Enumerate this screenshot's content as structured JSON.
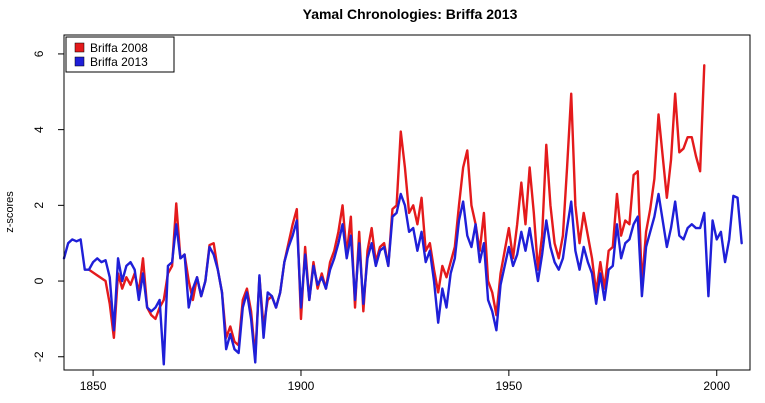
{
  "chart_data": {
    "type": "line",
    "title": "Yamal Chronologies: Briffa 2013",
    "xlabel": "",
    "ylabel": "z-scores",
    "xlim": [
      1843,
      2008
    ],
    "ylim": [
      -2.35,
      6.5
    ],
    "x_ticks": [
      1850,
      1900,
      1950,
      2000
    ],
    "y_ticks": [
      -2,
      0,
      2,
      4,
      6
    ],
    "legend_position": "top-left",
    "grid": false,
    "series": [
      {
        "name": "Briffa 2008",
        "color": "#e41a1c",
        "points": [
          [
            1849,
            0.3
          ],
          [
            1851,
            0.15
          ],
          [
            1853,
            0.0
          ],
          [
            1854,
            -0.6
          ],
          [
            1855,
            -1.5
          ],
          [
            1856,
            0.2
          ],
          [
            1857,
            -0.2
          ],
          [
            1858,
            0.1
          ],
          [
            1859,
            -0.1
          ],
          [
            1860,
            0.2
          ],
          [
            1861,
            -0.3
          ],
          [
            1862,
            0.6
          ],
          [
            1863,
            -0.7
          ],
          [
            1864,
            -0.9
          ],
          [
            1865,
            -1.0
          ],
          [
            1866,
            -0.7
          ],
          [
            1867,
            -0.5
          ],
          [
            1868,
            0.2
          ],
          [
            1869,
            0.4
          ],
          [
            1870,
            2.05
          ],
          [
            1871,
            0.6
          ],
          [
            1872,
            0.7
          ],
          [
            1873,
            0.0
          ],
          [
            1874,
            -0.5
          ],
          [
            1875,
            0.1
          ],
          [
            1876,
            -0.4
          ],
          [
            1877,
            0.0
          ],
          [
            1878,
            0.95
          ],
          [
            1879,
            1.0
          ],
          [
            1880,
            0.3
          ],
          [
            1881,
            -0.3
          ],
          [
            1882,
            -1.5
          ],
          [
            1883,
            -1.2
          ],
          [
            1884,
            -1.6
          ],
          [
            1885,
            -1.7
          ],
          [
            1886,
            -0.5
          ],
          [
            1887,
            -0.2
          ],
          [
            1888,
            -0.8
          ],
          [
            1889,
            -2.0
          ],
          [
            1890,
            0.1
          ],
          [
            1891,
            -1.2
          ],
          [
            1892,
            -0.5
          ],
          [
            1893,
            -0.4
          ],
          [
            1894,
            -0.7
          ],
          [
            1895,
            -0.3
          ],
          [
            1896,
            0.5
          ],
          [
            1897,
            1.0
          ],
          [
            1898,
            1.5
          ],
          [
            1899,
            1.9
          ],
          [
            1900,
            -1.0
          ],
          [
            1901,
            0.9
          ],
          [
            1902,
            -0.5
          ],
          [
            1903,
            0.5
          ],
          [
            1904,
            -0.2
          ],
          [
            1905,
            0.2
          ],
          [
            1906,
            -0.2
          ],
          [
            1907,
            0.5
          ],
          [
            1908,
            0.8
          ],
          [
            1909,
            1.3
          ],
          [
            1910,
            2.0
          ],
          [
            1911,
            0.7
          ],
          [
            1912,
            1.7
          ],
          [
            1913,
            -0.7
          ],
          [
            1914,
            1.3
          ],
          [
            1915,
            -0.8
          ],
          [
            1916,
            0.8
          ],
          [
            1917,
            1.4
          ],
          [
            1918,
            0.5
          ],
          [
            1919,
            0.9
          ],
          [
            1920,
            1.0
          ],
          [
            1921,
            0.4
          ],
          [
            1922,
            1.9
          ],
          [
            1923,
            2.0
          ],
          [
            1924,
            3.95
          ],
          [
            1925,
            3.0
          ],
          [
            1926,
            1.8
          ],
          [
            1927,
            2.0
          ],
          [
            1928,
            1.5
          ],
          [
            1929,
            2.2
          ],
          [
            1930,
            0.8
          ],
          [
            1931,
            1.0
          ],
          [
            1932,
            0.3
          ],
          [
            1933,
            -0.3
          ],
          [
            1934,
            0.4
          ],
          [
            1935,
            0.1
          ],
          [
            1936,
            0.5
          ],
          [
            1937,
            0.9
          ],
          [
            1938,
            2.0
          ],
          [
            1939,
            3.0
          ],
          [
            1940,
            3.45
          ],
          [
            1941,
            2.0
          ],
          [
            1942,
            1.5
          ],
          [
            1943,
            0.8
          ],
          [
            1944,
            1.8
          ],
          [
            1945,
            0.0
          ],
          [
            1946,
            -0.3
          ],
          [
            1947,
            -0.9
          ],
          [
            1948,
            0.2
          ],
          [
            1949,
            0.8
          ],
          [
            1950,
            1.4
          ],
          [
            1951,
            0.6
          ],
          [
            1952,
            1.5
          ],
          [
            1953,
            2.6
          ],
          [
            1954,
            1.5
          ],
          [
            1955,
            3.0
          ],
          [
            1956,
            1.8
          ],
          [
            1957,
            0.3
          ],
          [
            1958,
            1.2
          ],
          [
            1959,
            3.6
          ],
          [
            1960,
            2.0
          ],
          [
            1961,
            1.0
          ],
          [
            1962,
            0.6
          ],
          [
            1963,
            1.2
          ],
          [
            1964,
            3.0
          ],
          [
            1965,
            4.95
          ],
          [
            1966,
            2.0
          ],
          [
            1967,
            1.0
          ],
          [
            1968,
            1.8
          ],
          [
            1969,
            1.2
          ],
          [
            1970,
            0.6
          ],
          [
            1971,
            -0.3
          ],
          [
            1972,
            0.5
          ],
          [
            1973,
            -0.2
          ],
          [
            1974,
            0.8
          ],
          [
            1975,
            0.9
          ],
          [
            1976,
            2.3
          ],
          [
            1977,
            1.2
          ],
          [
            1978,
            1.6
          ],
          [
            1979,
            1.5
          ],
          [
            1980,
            2.8
          ],
          [
            1981,
            2.9
          ],
          [
            1982,
            -0.1
          ],
          [
            1983,
            1.3
          ],
          [
            1984,
            1.9
          ],
          [
            1985,
            2.7
          ],
          [
            1986,
            4.4
          ],
          [
            1987,
            3.3
          ],
          [
            1988,
            2.2
          ],
          [
            1989,
            3.2
          ],
          [
            1990,
            4.95
          ],
          [
            1991,
            3.4
          ],
          [
            1992,
            3.5
          ],
          [
            1993,
            3.8
          ],
          [
            1994,
            3.8
          ],
          [
            1995,
            3.3
          ],
          [
            1996,
            2.9
          ],
          [
            1997,
            5.7
          ]
        ]
      },
      {
        "name": "Briffa 2013",
        "color": "#1f1fd8",
        "points": [
          [
            1843,
            0.6
          ],
          [
            1844,
            1.0
          ],
          [
            1845,
            1.1
          ],
          [
            1846,
            1.05
          ],
          [
            1847,
            1.1
          ],
          [
            1848,
            0.3
          ],
          [
            1849,
            0.3
          ],
          [
            1850,
            0.5
          ],
          [
            1851,
            0.6
          ],
          [
            1852,
            0.5
          ],
          [
            1853,
            0.55
          ],
          [
            1854,
            0.1
          ],
          [
            1855,
            -1.3
          ],
          [
            1856,
            0.6
          ],
          [
            1857,
            0.0
          ],
          [
            1858,
            0.4
          ],
          [
            1859,
            0.5
          ],
          [
            1860,
            0.3
          ],
          [
            1861,
            -0.5
          ],
          [
            1862,
            0.2
          ],
          [
            1863,
            -0.7
          ],
          [
            1864,
            -0.8
          ],
          [
            1865,
            -0.7
          ],
          [
            1866,
            -0.5
          ],
          [
            1867,
            -2.2
          ],
          [
            1868,
            0.4
          ],
          [
            1869,
            0.5
          ],
          [
            1870,
            1.5
          ],
          [
            1871,
            0.6
          ],
          [
            1872,
            0.7
          ],
          [
            1873,
            -0.7
          ],
          [
            1874,
            -0.2
          ],
          [
            1875,
            0.1
          ],
          [
            1876,
            -0.4
          ],
          [
            1877,
            0.0
          ],
          [
            1878,
            0.9
          ],
          [
            1879,
            0.7
          ],
          [
            1880,
            0.3
          ],
          [
            1881,
            -0.3
          ],
          [
            1882,
            -1.8
          ],
          [
            1883,
            -1.4
          ],
          [
            1884,
            -1.8
          ],
          [
            1885,
            -1.9
          ],
          [
            1886,
            -0.7
          ],
          [
            1887,
            -0.3
          ],
          [
            1888,
            -1.0
          ],
          [
            1889,
            -2.15
          ],
          [
            1890,
            0.15
          ],
          [
            1891,
            -1.5
          ],
          [
            1892,
            -0.3
          ],
          [
            1893,
            -0.4
          ],
          [
            1894,
            -0.7
          ],
          [
            1895,
            -0.3
          ],
          [
            1896,
            0.5
          ],
          [
            1897,
            0.9
          ],
          [
            1898,
            1.2
          ],
          [
            1899,
            1.6
          ],
          [
            1900,
            -0.7
          ],
          [
            1901,
            0.7
          ],
          [
            1902,
            -0.5
          ],
          [
            1903,
            0.4
          ],
          [
            1904,
            -0.1
          ],
          [
            1905,
            0.1
          ],
          [
            1906,
            -0.2
          ],
          [
            1907,
            0.3
          ],
          [
            1908,
            0.6
          ],
          [
            1909,
            1.0
          ],
          [
            1910,
            1.5
          ],
          [
            1911,
            0.6
          ],
          [
            1912,
            1.2
          ],
          [
            1913,
            -0.5
          ],
          [
            1914,
            1.0
          ],
          [
            1915,
            -0.6
          ],
          [
            1916,
            0.6
          ],
          [
            1917,
            1.0
          ],
          [
            1918,
            0.4
          ],
          [
            1919,
            0.8
          ],
          [
            1920,
            0.9
          ],
          [
            1921,
            0.4
          ],
          [
            1922,
            1.7
          ],
          [
            1923,
            1.8
          ],
          [
            1924,
            2.3
          ],
          [
            1925,
            2.0
          ],
          [
            1926,
            1.3
          ],
          [
            1927,
            1.4
          ],
          [
            1928,
            0.8
          ],
          [
            1929,
            1.3
          ],
          [
            1930,
            0.5
          ],
          [
            1931,
            0.8
          ],
          [
            1932,
            0.0
          ],
          [
            1933,
            -1.1
          ],
          [
            1934,
            -0.2
          ],
          [
            1935,
            -0.7
          ],
          [
            1936,
            0.2
          ],
          [
            1937,
            0.6
          ],
          [
            1938,
            1.6
          ],
          [
            1939,
            2.1
          ],
          [
            1940,
            1.2
          ],
          [
            1941,
            0.9
          ],
          [
            1942,
            1.5
          ],
          [
            1943,
            0.5
          ],
          [
            1944,
            1.0
          ],
          [
            1945,
            -0.5
          ],
          [
            1946,
            -0.8
          ],
          [
            1947,
            -1.3
          ],
          [
            1948,
            -0.1
          ],
          [
            1949,
            0.4
          ],
          [
            1950,
            0.9
          ],
          [
            1951,
            0.4
          ],
          [
            1952,
            0.7
          ],
          [
            1953,
            1.3
          ],
          [
            1954,
            0.8
          ],
          [
            1955,
            1.4
          ],
          [
            1956,
            0.7
          ],
          [
            1957,
            0.0
          ],
          [
            1958,
            0.7
          ],
          [
            1959,
            1.6
          ],
          [
            1960,
            0.9
          ],
          [
            1961,
            0.5
          ],
          [
            1962,
            0.3
          ],
          [
            1963,
            0.6
          ],
          [
            1964,
            1.4
          ],
          [
            1965,
            2.1
          ],
          [
            1966,
            0.8
          ],
          [
            1967,
            0.3
          ],
          [
            1968,
            0.9
          ],
          [
            1969,
            0.5
          ],
          [
            1970,
            0.2
          ],
          [
            1971,
            -0.6
          ],
          [
            1972,
            0.2
          ],
          [
            1973,
            -0.5
          ],
          [
            1974,
            0.3
          ],
          [
            1975,
            0.4
          ],
          [
            1976,
            1.5
          ],
          [
            1977,
            0.6
          ],
          [
            1978,
            1.0
          ],
          [
            1979,
            1.1
          ],
          [
            1980,
            1.5
          ],
          [
            1981,
            1.7
          ],
          [
            1982,
            -0.4
          ],
          [
            1983,
            0.9
          ],
          [
            1984,
            1.3
          ],
          [
            1985,
            1.7
          ],
          [
            1986,
            2.3
          ],
          [
            1987,
            1.6
          ],
          [
            1988,
            0.9
          ],
          [
            1989,
            1.4
          ],
          [
            1990,
            2.1
          ],
          [
            1991,
            1.2
          ],
          [
            1992,
            1.1
          ],
          [
            1993,
            1.4
          ],
          [
            1994,
            1.5
          ],
          [
            1995,
            1.4
          ],
          [
            1996,
            1.4
          ],
          [
            1997,
            1.8
          ],
          [
            1998,
            -0.4
          ],
          [
            1999,
            1.6
          ],
          [
            2000,
            1.1
          ],
          [
            2001,
            1.3
          ],
          [
            2002,
            0.5
          ],
          [
            2003,
            1.1
          ],
          [
            2004,
            2.25
          ],
          [
            2005,
            2.2
          ],
          [
            2006,
            1.0
          ]
        ]
      }
    ]
  }
}
